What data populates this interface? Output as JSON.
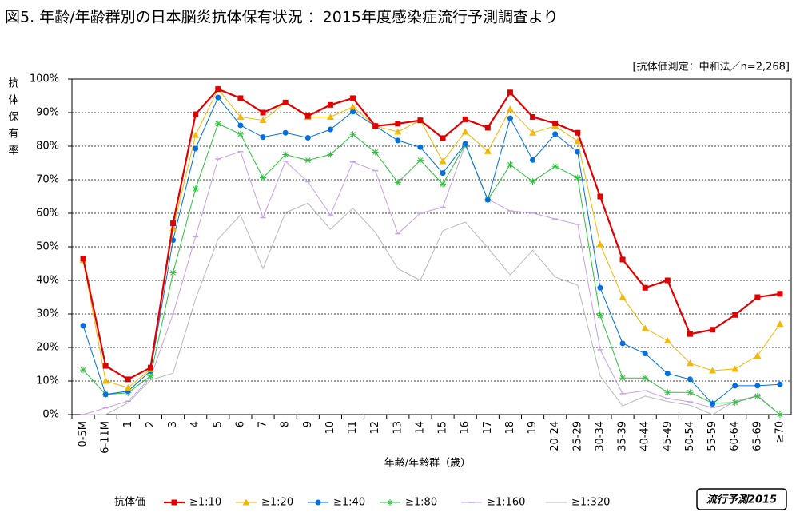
{
  "chart_data": {
    "type": "line",
    "title": "図5. 年齢/年齢群別の日本脳炎抗体保有状況 ：2015年度感染症流行予測調査より",
    "subtitle": "[抗体価測定：中和法／n=2,268]",
    "y_label": "抗体保有率",
    "x_label": "年齢/年齢群（歳）",
    "legend_title": "抗体価",
    "badge": "流行予測2015",
    "categories": [
      "0-5M",
      "6-11M",
      "1",
      "2",
      "3",
      "4",
      "5",
      "6",
      "7",
      "8",
      "9",
      "10",
      "11",
      "12",
      "13",
      "14",
      "15",
      "16",
      "17",
      "18",
      "19",
      "20-24",
      "25-29",
      "30-34",
      "35-39",
      "40-44",
      "45-49",
      "50-54",
      "55-59",
      "60-64",
      "65-69",
      "≥70"
    ],
    "ylim": [
      0,
      100
    ],
    "yticks": [
      {
        "value": 0,
        "label": "0%"
      },
      {
        "value": 10,
        "label": "10%"
      },
      {
        "value": 20,
        "label": "20%"
      },
      {
        "value": 30,
        "label": "30%"
      },
      {
        "value": 40,
        "label": "40%"
      },
      {
        "value": 50,
        "label": "50%"
      },
      {
        "value": 60,
        "label": "60%"
      },
      {
        "value": 70,
        "label": "70%"
      },
      {
        "value": 80,
        "label": "80%"
      },
      {
        "value": 90,
        "label": "90%"
      },
      {
        "value": 100,
        "label": "100%"
      }
    ],
    "grid": true,
    "legend": "bottom",
    "series": [
      {
        "name": "≥1:10",
        "color": "#e00000",
        "marker": "square",
        "values": [
          46.5,
          14.5,
          10.5,
          14,
          57,
          89.5,
          97,
          94.3,
          90,
          93,
          89,
          92.3,
          94.3,
          86,
          86.7,
          87.7,
          82.4,
          88,
          85.5,
          96,
          88.7,
          86.8,
          84,
          65,
          46.2,
          37.8,
          40,
          24,
          25.3,
          29.7,
          35,
          36
        ]
      },
      {
        "name": "≥1:20",
        "color": "#f5b800",
        "marker": "triangle",
        "values": [
          46,
          10,
          8,
          13.5,
          55.5,
          83.3,
          97,
          88.7,
          87.7,
          93,
          88.7,
          88.7,
          91.7,
          86,
          84.3,
          87.7,
          75.5,
          84.3,
          78.5,
          91,
          84,
          86,
          81.5,
          50.7,
          35,
          25.7,
          22,
          15.3,
          13.1,
          13.6,
          17.5,
          27
        ]
      },
      {
        "name": "≥1:40",
        "color": "#0070e0",
        "marker": "circle",
        "values": [
          26.5,
          6,
          7,
          13,
          52,
          79.3,
          94.5,
          86.2,
          82.7,
          84,
          82.5,
          85,
          90.3,
          86,
          81.7,
          79.7,
          72,
          80.7,
          64,
          88.3,
          75.9,
          83.6,
          78.3,
          37.8,
          21.2,
          18.2,
          12.2,
          10.5,
          3.2,
          8.6,
          8.6,
          9
        ]
      },
      {
        "name": "≥1:80",
        "color": "#30c040",
        "marker": "star",
        "values": [
          13.3,
          6,
          6.5,
          11.5,
          42.3,
          67.3,
          86.7,
          83.6,
          70.6,
          77.5,
          75.8,
          77.5,
          83.5,
          78.2,
          69.2,
          75.8,
          68.7,
          80.5,
          64,
          74.5,
          69.5,
          74,
          70.6,
          29.6,
          10.9,
          10.9,
          6.6,
          6.6,
          3.4,
          3.6,
          5.5,
          0
        ]
      },
      {
        "name": "≥1:160",
        "color": "#c9a0e8",
        "marker": "dash",
        "values": [
          0,
          2,
          4,
          11,
          30,
          53,
          76.2,
          78.4,
          58.7,
          75.5,
          69.4,
          59.5,
          75.3,
          72.7,
          53.9,
          60,
          61.8,
          80.5,
          64.2,
          60.7,
          60.1,
          58.3,
          56.7,
          19.3,
          6.2,
          7.1,
          4.8,
          3.8,
          2.1,
          3.6,
          5.7,
          0
        ]
      },
      {
        "name": "≥1:320",
        "color": "#b8b8b8",
        "marker": "none",
        "values": [
          0,
          0,
          3.5,
          10.3,
          12.3,
          34.5,
          52.3,
          59.5,
          43.5,
          60.2,
          63,
          55.2,
          61.5,
          54.3,
          43.5,
          40,
          54.8,
          57.4,
          49.7,
          41.6,
          49,
          41,
          38.6,
          11.5,
          2.6,
          5.5,
          3.9,
          2.8,
          0,
          4,
          5.6,
          0
        ]
      }
    ]
  }
}
